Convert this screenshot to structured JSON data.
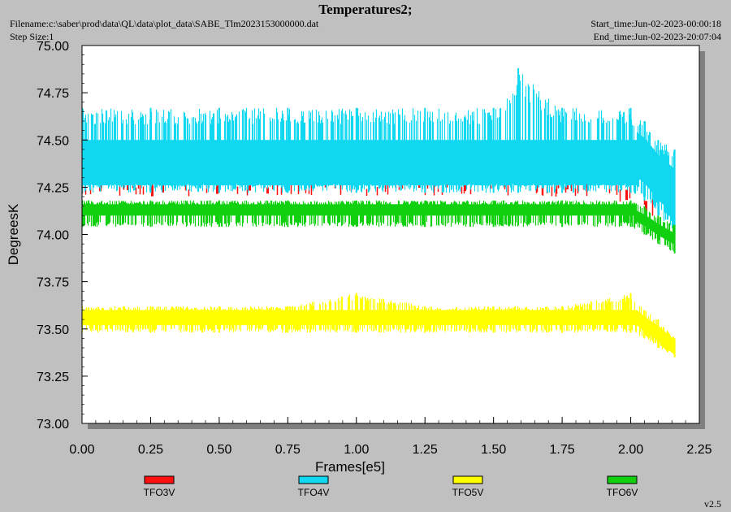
{
  "header": {
    "title": "Temperatures2;",
    "filename": "Filename:c:\\saber\\prod\\data\\QL\\data\\plot_data\\SABE_Tlm2023153000000.dat",
    "step_size": "Step Size:1",
    "start_time": "Start_time:Jun-02-2023-00:00:18",
    "end_time": "End_time:Jun-02-2023-20:07:04"
  },
  "version": "v2.5",
  "colors": {
    "TFO3V": "#ff1010",
    "TFO4V": "#10d8f0",
    "TFO5V": "#ffff00",
    "TFO6V": "#10d010",
    "plot_bg": "#ffffff",
    "window_bg": "#c0c0c0",
    "shadow": "#808080"
  },
  "chart_data": {
    "type": "line",
    "title": "Temperatures2;",
    "xlabel": "Frames[e5]",
    "ylabel": "DegreesK",
    "xlim": [
      0.0,
      2.25
    ],
    "ylim": [
      73.0,
      75.0
    ],
    "xticks": [
      "0.00",
      "0.25",
      "0.50",
      "0.75",
      "1.00",
      "1.25",
      "1.50",
      "1.75",
      "2.00",
      "2.25"
    ],
    "yticks": [
      "73.00",
      "73.25",
      "73.50",
      "73.75",
      "74.00",
      "74.25",
      "74.50",
      "74.75",
      "75.00"
    ],
    "grid": false,
    "legend_position": "bottom",
    "series": [
      {
        "name": "TFO3V",
        "x": [
          0.0,
          0.25,
          0.5,
          0.75,
          1.0,
          1.25,
          1.5,
          1.75,
          2.0,
          2.05,
          2.1,
          2.16
        ],
        "y_min": [
          74.2,
          74.2,
          74.2,
          74.2,
          74.2,
          74.2,
          74.2,
          74.2,
          74.15,
          74.1,
          74.05,
          74.03
        ],
        "y_max": [
          74.3,
          74.3,
          74.3,
          74.3,
          74.3,
          74.3,
          74.3,
          74.3,
          74.28,
          74.25,
          74.2,
          74.15
        ]
      },
      {
        "name": "TFO4V",
        "x": [
          0.0,
          0.25,
          0.5,
          0.75,
          1.0,
          1.25,
          1.5,
          1.59,
          1.75,
          2.0,
          2.05,
          2.1,
          2.16
        ],
        "y_min": [
          74.22,
          74.22,
          74.22,
          74.22,
          74.22,
          74.22,
          74.22,
          74.22,
          74.22,
          74.22,
          74.18,
          74.1,
          74.0
        ],
        "y_max": [
          74.67,
          74.67,
          74.67,
          74.67,
          74.67,
          74.67,
          74.67,
          74.88,
          74.67,
          74.67,
          74.6,
          74.5,
          74.45
        ]
      },
      {
        "name": "TFO5V",
        "x": [
          0.0,
          0.25,
          0.5,
          0.75,
          1.0,
          1.25,
          1.5,
          1.75,
          2.0,
          2.05,
          2.1,
          2.16
        ],
        "y_min": [
          73.48,
          73.48,
          73.48,
          73.48,
          73.48,
          73.48,
          73.48,
          73.48,
          73.48,
          73.45,
          73.4,
          73.35
        ],
        "y_max": [
          73.62,
          73.62,
          73.62,
          73.62,
          73.69,
          73.62,
          73.62,
          73.62,
          73.69,
          73.6,
          73.55,
          73.45
        ]
      },
      {
        "name": "TFO6V",
        "x": [
          0.0,
          0.25,
          0.5,
          0.75,
          1.0,
          1.25,
          1.5,
          1.75,
          2.0,
          2.05,
          2.1,
          2.16
        ],
        "y_min": [
          74.04,
          74.04,
          74.04,
          74.04,
          74.04,
          74.04,
          74.04,
          74.04,
          74.04,
          74.0,
          73.95,
          73.9
        ],
        "y_max": [
          74.18,
          74.18,
          74.18,
          74.18,
          74.18,
          74.18,
          74.18,
          74.18,
          74.18,
          74.15,
          74.1,
          74.05
        ]
      }
    ]
  }
}
